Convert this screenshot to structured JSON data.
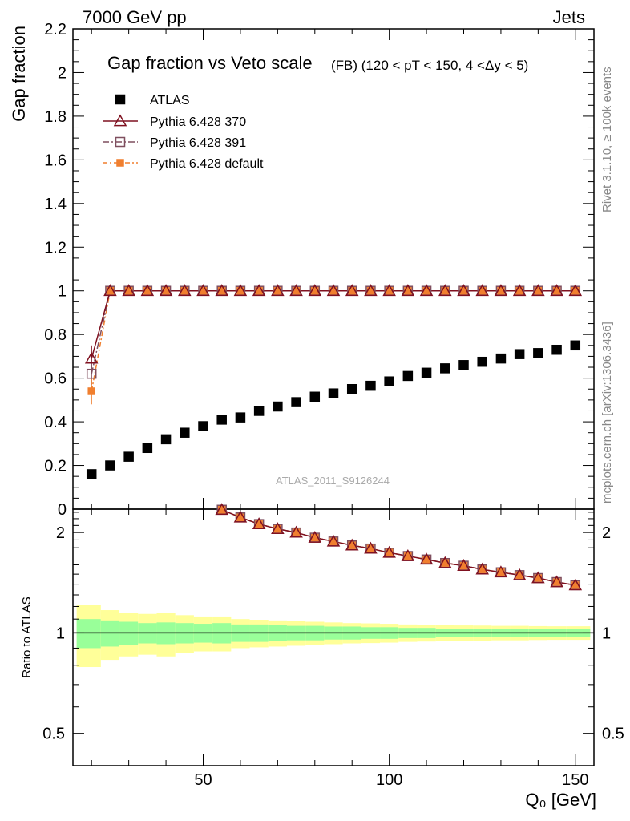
{
  "header": {
    "left": "7000 GeV pp",
    "right": "Jets"
  },
  "side": {
    "rivet": "Rivet 3.1.10, ≥ 100k events",
    "mcplots": "mcplots.cern.ch [arXiv:1306.3436]"
  },
  "colors": {
    "atlas": "#000000",
    "p370": "#7f1120",
    "p391": "#7f4f5f",
    "pdef": "#f07f2f",
    "band_inner": "#99ff99",
    "band_outer": "#ffff99"
  },
  "chart_data": [
    {
      "type": "scatter",
      "title": "Gap fraction vs Veto scale",
      "subtitle": "(FB) (120 < pT < 150, 4 <Δy < 5)",
      "ylabel": "Gap fraction",
      "xlabel": "",
      "xlim": [
        15,
        155
      ],
      "ylim": [
        0,
        2.2
      ],
      "yticks": [
        "0",
        "0.2",
        "0.4",
        "0.6",
        "0.8",
        "1",
        "1.2",
        "1.4",
        "1.6",
        "1.8",
        "2",
        "2.2"
      ],
      "watermark": "ATLAS_2011_S9126244",
      "x": [
        20,
        25,
        30,
        35,
        40,
        45,
        50,
        55,
        60,
        65,
        70,
        75,
        80,
        85,
        90,
        95,
        100,
        105,
        110,
        115,
        120,
        125,
        130,
        135,
        140,
        145,
        150
      ],
      "series": [
        {
          "name": "ATLAS",
          "marker": "filled-square",
          "values": [
            0.16,
            0.2,
            0.24,
            0.28,
            0.32,
            0.35,
            0.38,
            0.41,
            0.42,
            0.45,
            0.47,
            0.49,
            0.515,
            0.53,
            0.55,
            0.565,
            0.585,
            0.61,
            0.625,
            0.645,
            0.66,
            0.675,
            0.69,
            0.71,
            0.715,
            0.73,
            0.75
          ]
        },
        {
          "name": "Pythia 6.428 370",
          "marker": "open-triangle",
          "values": [
            0.69,
            1,
            1,
            1,
            1,
            1,
            1,
            1,
            1,
            1,
            1,
            1,
            1,
            1,
            1,
            1,
            1,
            1,
            1,
            1,
            1,
            1,
            1,
            1,
            1,
            1,
            1
          ]
        },
        {
          "name": "Pythia 6.428 391",
          "marker": "open-square",
          "values": [
            0.62,
            1,
            1,
            1,
            1,
            1,
            1,
            1,
            1,
            1,
            1,
            1,
            1,
            1,
            1,
            1,
            1,
            1,
            1,
            1,
            1,
            1,
            1,
            1,
            1,
            1,
            1
          ]
        },
        {
          "name": "Pythia 6.428 default",
          "marker": "filled-square-small",
          "values": [
            0.54,
            1,
            1,
            1,
            1,
            1,
            1,
            1,
            1,
            1,
            1,
            1,
            1,
            1,
            1,
            1,
            1,
            1,
            1,
            1,
            1,
            1,
            1,
            1,
            1,
            1,
            1
          ]
        }
      ]
    },
    {
      "type": "line",
      "title": "",
      "ylabel": "Ratio to ATLAS",
      "xlabel": "Q₀ [GeV]",
      "yscale": "log",
      "xlim": [
        15,
        155
      ],
      "ylim": [
        0.4,
        2.35
      ],
      "xticks": [
        "50",
        "100",
        "150"
      ],
      "yticks": [
        "0.5",
        "1",
        "2"
      ],
      "x": [
        55,
        60,
        65,
        70,
        75,
        80,
        85,
        90,
        95,
        100,
        105,
        110,
        115,
        120,
        125,
        130,
        135,
        140,
        145,
        150
      ],
      "ratio": [
        2.34,
        2.22,
        2.12,
        2.05,
        2.0,
        1.93,
        1.88,
        1.83,
        1.79,
        1.74,
        1.7,
        1.66,
        1.62,
        1.59,
        1.55,
        1.52,
        1.49,
        1.46,
        1.42,
        1.39
      ],
      "band_x": [
        20,
        25,
        30,
        35,
        40,
        45,
        50,
        55,
        60,
        65,
        70,
        75,
        80,
        85,
        90,
        95,
        100,
        105,
        110,
        115,
        120,
        125,
        130,
        135,
        140,
        145,
        150
      ],
      "band_inner": [
        0.1,
        0.09,
        0.08,
        0.07,
        0.075,
        0.07,
        0.065,
        0.07,
        0.06,
        0.06,
        0.055,
        0.05,
        0.05,
        0.045,
        0.045,
        0.04,
        0.04,
        0.035,
        0.035,
        0.03,
        0.03,
        0.03,
        0.028,
        0.028,
        0.026,
        0.025,
        0.025
      ],
      "band_outer": [
        0.21,
        0.17,
        0.15,
        0.14,
        0.15,
        0.13,
        0.12,
        0.12,
        0.1,
        0.095,
        0.09,
        0.085,
        0.08,
        0.075,
        0.07,
        0.068,
        0.065,
        0.06,
        0.058,
        0.055,
        0.053,
        0.052,
        0.05,
        0.05,
        0.048,
        0.047,
        0.047
      ]
    }
  ]
}
